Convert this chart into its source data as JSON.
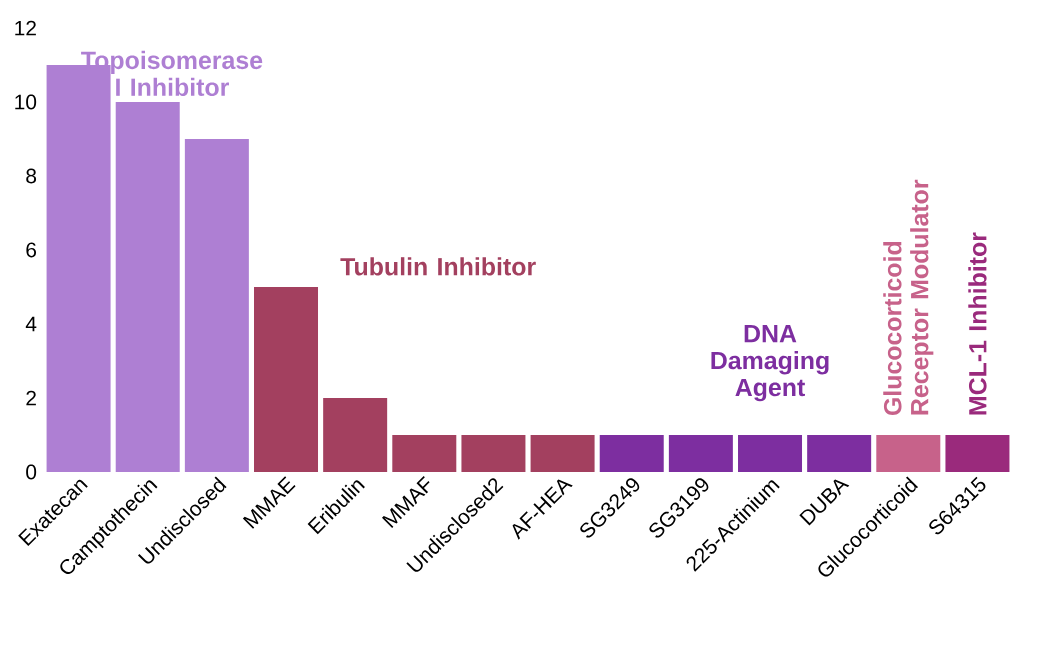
{
  "chart_data": {
    "type": "bar",
    "categories": [
      "Exatecan",
      "Camptothecin",
      "Undisclosed",
      "MMAE",
      "Eribulin",
      "MMAF",
      "Undisclosed2",
      "AF-HEA",
      "SG3249",
      "SG3199",
      "225-Actinium",
      "DUBA",
      "Glucocorticoid",
      "S64315"
    ],
    "values": [
      11,
      10,
      9,
      5,
      2,
      1,
      1,
      1,
      1,
      1,
      1,
      1,
      1,
      1
    ],
    "colors": [
      "#ae7fd3",
      "#ae7fd3",
      "#ae7fd3",
      "#a3405f",
      "#a3405f",
      "#a3405f",
      "#a3405f",
      "#a3405f",
      "#7d2ea0",
      "#7d2ea0",
      "#7d2ea0",
      "#7d2ea0",
      "#c7628a",
      "#9a2a7c"
    ],
    "ylim": [
      0,
      12
    ],
    "yticks": [
      0,
      2,
      4,
      6,
      8,
      10,
      12
    ],
    "annotations": [
      "Topoisomerase I Inhibitor",
      "Tubulin Inhibitor",
      "DNA Damaging Agent",
      "Glucocorticoid Receptor Modulator",
      "MCL-1 Inhibitor"
    ]
  }
}
